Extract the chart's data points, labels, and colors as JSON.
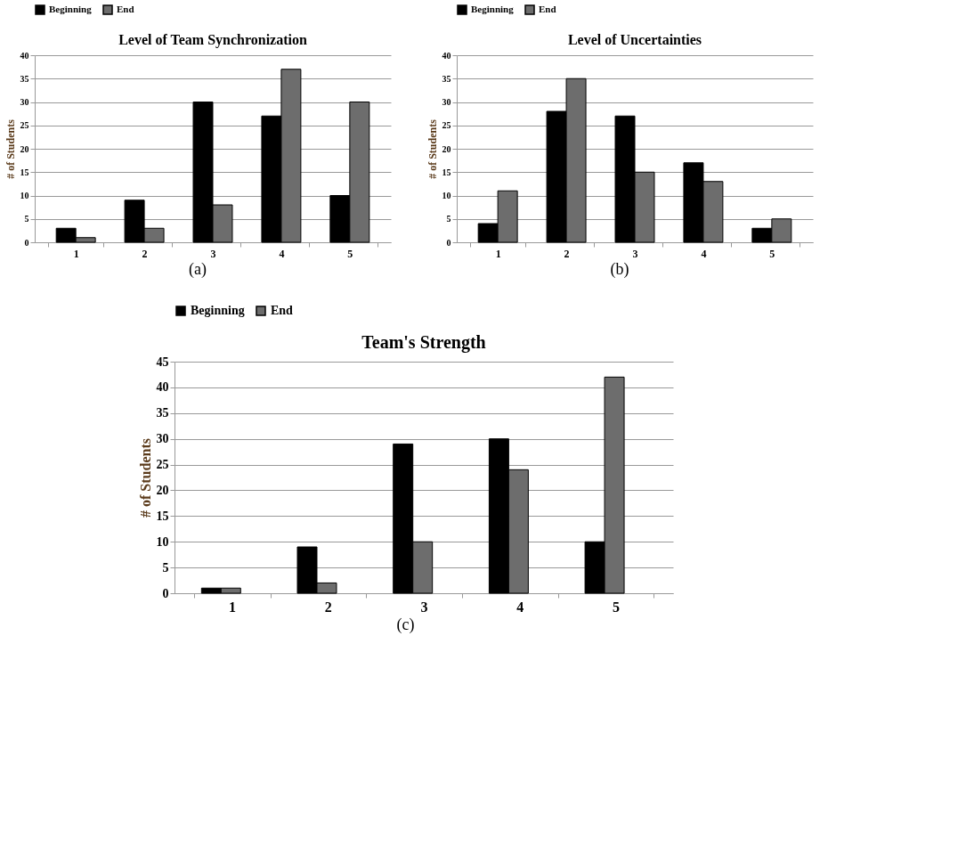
{
  "chart_data": [
    {
      "type": "bar",
      "title": "Level of Team Synchronization",
      "ylabel": "# of Students",
      "categories": [
        "1",
        "2",
        "3",
        "4",
        "5"
      ],
      "ylim": [
        0,
        40
      ],
      "yticks": [
        0,
        5,
        10,
        15,
        20,
        25,
        30,
        35,
        40
      ],
      "grid": "y",
      "legend": "top",
      "annotations": [
        "(a)"
      ],
      "series": [
        {
          "name": "Beginning",
          "color": "#000000",
          "values": [
            3,
            9,
            30,
            27,
            10
          ]
        },
        {
          "name": "End",
          "color": "#6d6d6d",
          "values": [
            1,
            3,
            8,
            37,
            30
          ]
        }
      ]
    },
    {
      "type": "bar",
      "title": "Level of Uncertainties",
      "ylabel": "# of Students",
      "categories": [
        "1",
        "2",
        "3",
        "4",
        "5"
      ],
      "ylim": [
        0,
        40
      ],
      "yticks": [
        0,
        5,
        10,
        15,
        20,
        25,
        30,
        35,
        40
      ],
      "grid": "y",
      "legend": "top",
      "annotations": [
        "(b)"
      ],
      "series": [
        {
          "name": "Beginning",
          "color": "#000000",
          "values": [
            4,
            28,
            27,
            17,
            3
          ]
        },
        {
          "name": "End",
          "color": "#6d6d6d",
          "values": [
            11,
            35,
            15,
            13,
            5
          ]
        }
      ]
    },
    {
      "type": "bar",
      "title": "Team's Strength",
      "ylabel": "# of Students",
      "categories": [
        "1",
        "2",
        "3",
        "4",
        "5"
      ],
      "ylim": [
        0,
        45
      ],
      "yticks": [
        0,
        5,
        10,
        15,
        20,
        25,
        30,
        35,
        40,
        45
      ],
      "grid": "y",
      "legend": "top",
      "annotations": [
        "(c)"
      ],
      "series": [
        {
          "name": "Beginning",
          "color": "#000000",
          "values": [
            1,
            9,
            29,
            30,
            10
          ]
        },
        {
          "name": "End",
          "color": "#6d6d6d",
          "values": [
            1,
            2,
            10,
            24,
            42
          ]
        }
      ]
    }
  ]
}
